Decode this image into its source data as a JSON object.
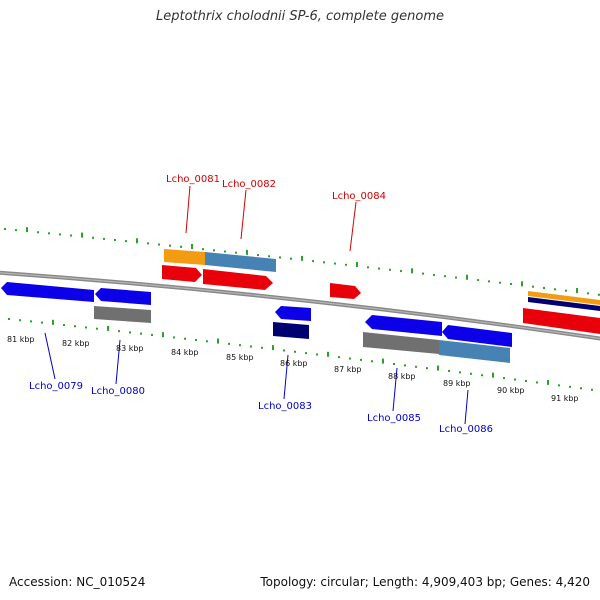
{
  "header": {
    "title": "Leptothrix cholodnii SP-6, complete genome"
  },
  "footer": {
    "accession": "Accession: NC_010524",
    "summary": "Topology: circular; Length: 4,909,403 bp; Genes: 4,420"
  },
  "colors": {
    "forward_cds": "#e8000b",
    "reverse_cds": "#0b00e8",
    "forward_tick": "#2ca02c",
    "backbone": "#888888",
    "forward_label": "#cc0000",
    "reverse_label": "#0000cc",
    "orange": "#f39c12",
    "steelblue": "#4682b4",
    "navy": "#000070",
    "grey": "#707070"
  },
  "axis": {
    "unit": "kbp",
    "tick_labels": [
      "81 kbp",
      "82 kbp",
      "83 kbp",
      "84 kbp",
      "85 kbp",
      "86 kbp",
      "87 kbp",
      "88 kbp",
      "89 kbp",
      "90 kbp",
      "91 kbp"
    ]
  },
  "forward_gene_labels": [
    "Lcho_0081",
    "Lcho_0082",
    "Lcho_0084"
  ],
  "reverse_gene_labels": [
    "Lcho_0079",
    "Lcho_0080",
    "Lcho_0083",
    "Lcho_0085",
    "Lcho_0086"
  ]
}
